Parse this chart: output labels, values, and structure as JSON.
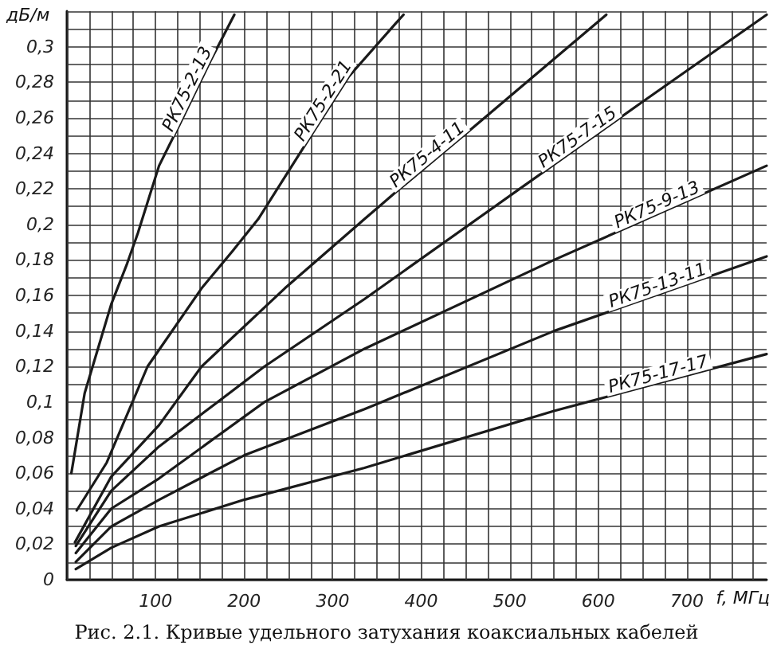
{
  "chart_data": {
    "type": "line",
    "title": "Рис. 2.1. Кривые удельного затухания коаксиальных кабелей",
    "xlabel": "f, МГц",
    "ylabel": "дБ/м",
    "xlim": [
      0,
      790
    ],
    "xticks": [
      {
        "value": 0,
        "label": null
      },
      {
        "value": 25,
        "label": null
      },
      {
        "value": 50,
        "label": null
      },
      {
        "value": 75,
        "label": null
      },
      100,
      {
        "value": 125,
        "label": null
      },
      {
        "value": 150,
        "label": null
      },
      {
        "value": 175,
        "label": null
      },
      200,
      {
        "value": 225,
        "label": null
      },
      {
        "value": 250,
        "label": null
      },
      {
        "value": 275,
        "label": null
      },
      300,
      {
        "value": 325,
        "label": null
      },
      {
        "value": 350,
        "label": null
      },
      {
        "value": 375,
        "label": null
      },
      400,
      {
        "value": 425,
        "label": null
      },
      {
        "value": 450,
        "label": null
      },
      {
        "value": 475,
        "label": null
      },
      500,
      {
        "value": 525,
        "label": null
      },
      {
        "value": 550,
        "label": null
      },
      {
        "value": 575,
        "label": null
      },
      600,
      {
        "value": 625,
        "label": null
      },
      {
        "value": 650,
        "label": null
      },
      {
        "value": 675,
        "label": null
      },
      700,
      {
        "value": 725,
        "label": null
      },
      {
        "value": 750,
        "label": null
      },
      {
        "value": 775,
        "label": null
      }
    ],
    "ylim": [
      0,
      0.32
    ],
    "yticks": [
      0,
      {
        "value": 0.01,
        "label": null
      },
      {
        "value": 0.02,
        "label": "0,02"
      },
      {
        "value": 0.03,
        "label": null
      },
      {
        "value": 0.04,
        "label": "0,04"
      },
      {
        "value": 0.05,
        "label": null
      },
      {
        "value": 0.06,
        "label": "0,06"
      },
      {
        "value": 0.07,
        "label": null
      },
      {
        "value": 0.08,
        "label": "0,08"
      },
      {
        "value": 0.09,
        "label": null
      },
      {
        "value": 0.1,
        "label": "0,1"
      },
      {
        "value": 0.11,
        "label": null
      },
      {
        "value": 0.12,
        "label": "0,12"
      },
      {
        "value": 0.13,
        "label": null
      },
      {
        "value": 0.14,
        "label": "0,14"
      },
      {
        "value": 0.15,
        "label": null
      },
      {
        "value": 0.16,
        "label": "0,16"
      },
      {
        "value": 0.17,
        "label": null
      },
      {
        "value": 0.18,
        "label": "0,18"
      },
      {
        "value": 0.19,
        "label": null
      },
      {
        "value": 0.2,
        "label": "0,2"
      },
      {
        "value": 0.21,
        "label": null
      },
      {
        "value": 0.22,
        "label": "0,22"
      },
      {
        "value": 0.23,
        "label": null
      },
      {
        "value": 0.24,
        "label": "0,24"
      },
      {
        "value": 0.25,
        "label": null
      },
      {
        "value": 0.26,
        "label": "0,26"
      },
      {
        "value": 0.27,
        "label": null
      },
      {
        "value": 0.28,
        "label": "0,28"
      },
      {
        "value": 0.29,
        "label": null
      },
      {
        "value": 0.3,
        "label": "0,3"
      },
      {
        "value": 0.31,
        "label": null
      },
      {
        "value": 0.32,
        "label": null
      }
    ],
    "grid": true,
    "legend": false,
    "marker": "none",
    "line_style": "solid",
    "series": [
      {
        "name": "РК75-2-13",
        "color": "#1a1a1a",
        "x": [
          5,
          20,
          38,
          50,
          68,
          80,
          104,
          127,
          162,
          189
        ],
        "values": [
          0.06,
          0.105,
          0.135,
          0.155,
          0.178,
          0.195,
          0.233,
          0.256,
          0.292,
          0.318
        ]
      },
      {
        "name": "РК75-2-21",
        "color": "#1a1a1a",
        "x": [
          11,
          45,
          91,
          152,
          187,
          216,
          277,
          318,
          371,
          380
        ],
        "values": [
          0.039,
          0.066,
          0.12,
          0.164,
          0.185,
          0.203,
          0.251,
          0.283,
          0.313,
          0.318
        ]
      },
      {
        "name": "РК75-4-11",
        "color": "#1a1a1a",
        "x": [
          9,
          50,
          104,
          152,
          246,
          336,
          371,
          455,
          609
        ],
        "values": [
          0.021,
          0.058,
          0.087,
          0.12,
          0.164,
          0.203,
          0.218,
          0.253,
          0.318
        ]
      },
      {
        "name": "РК75-7-15",
        "color": "#1a1a1a",
        "x": [
          10,
          50,
          104,
          223,
          336,
          514,
          650,
          790
        ],
        "values": [
          0.019,
          0.05,
          0.075,
          0.12,
          0.158,
          0.221,
          0.269,
          0.318
        ]
      },
      {
        "name": "РК75-9-13",
        "color": "#1a1a1a",
        "x": [
          10,
          50,
          104,
          223,
          336,
          550,
          790
        ],
        "values": [
          0.015,
          0.04,
          0.057,
          0.1,
          0.13,
          0.18,
          0.233
        ]
      },
      {
        "name": "РК75-13-11",
        "color": "#1a1a1a",
        "x": [
          10,
          50,
          104,
          200,
          336,
          550,
          790
        ],
        "values": [
          0.01,
          0.03,
          0.045,
          0.07,
          0.096,
          0.14,
          0.182
        ]
      },
      {
        "name": "РК75-17-17",
        "color": "#1a1a1a",
        "x": [
          10,
          50,
          104,
          200,
          336,
          550,
          790
        ],
        "values": [
          0.006,
          0.018,
          0.03,
          0.045,
          0.063,
          0.095,
          0.127
        ]
      }
    ]
  }
}
